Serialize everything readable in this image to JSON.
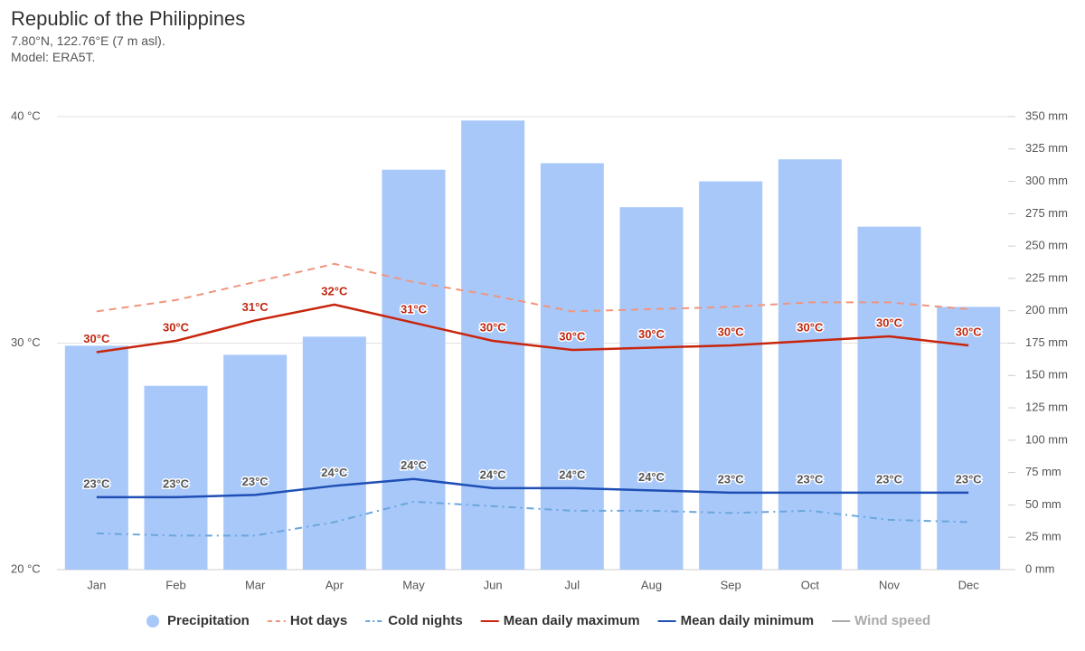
{
  "chart_data": {
    "type": "bar",
    "title": "Republic of the Philippines",
    "subtitle": [
      "7.80°N, 122.76°E (7 m asl).",
      "Model: ERA5T."
    ],
    "categories": [
      "Jan",
      "Feb",
      "Mar",
      "Apr",
      "May",
      "Jun",
      "Jul",
      "Aug",
      "Sep",
      "Oct",
      "Nov",
      "Dec"
    ],
    "ylim": [
      20,
      40
    ],
    "yticks": [
      {
        "value": 20,
        "label": "20 °C"
      },
      {
        "value": 30,
        "label": "30 °C"
      },
      {
        "value": 40,
        "label": "40 °C"
      }
    ],
    "y2lim": [
      0,
      350
    ],
    "y2ticks": [
      {
        "value": 0,
        "label": "0 mm"
      },
      {
        "value": 25,
        "label": "25 mm"
      },
      {
        "value": 50,
        "label": "50 mm"
      },
      {
        "value": 75,
        "label": "75 mm"
      },
      {
        "value": 100,
        "label": "100 mm"
      },
      {
        "value": 125,
        "label": "125 mm"
      },
      {
        "value": 150,
        "label": "150 mm"
      },
      {
        "value": 175,
        "label": "175 mm"
      },
      {
        "value": 200,
        "label": "200 mm"
      },
      {
        "value": 225,
        "label": "225 mm"
      },
      {
        "value": 250,
        "label": "250 mm"
      },
      {
        "value": 275,
        "label": "275 mm"
      },
      {
        "value": 300,
        "label": "300 mm"
      },
      {
        "value": 325,
        "label": "325 mm"
      },
      {
        "value": 350,
        "label": "350 mm"
      }
    ],
    "grid": true,
    "legend": "bottom",
    "series": [
      {
        "name": "Precipitation",
        "type": "bar",
        "axis": "y2",
        "color": "#a8c8fa",
        "values": [
          173,
          142,
          166,
          180,
          309,
          347,
          314,
          280,
          300,
          317,
          265,
          203
        ]
      },
      {
        "name": "Hot days",
        "type": "line",
        "dash": "dashed",
        "color": "#f0957e",
        "values": [
          31.4,
          31.9,
          32.7,
          33.5,
          32.7,
          32.1,
          31.4,
          31.5,
          31.6,
          31.8,
          31.8,
          31.5
        ]
      },
      {
        "name": "Cold nights",
        "type": "line",
        "dash": "dashdot",
        "color": "#6aa6dc",
        "values": [
          21.6,
          21.5,
          21.5,
          22.1,
          23.0,
          22.8,
          22.6,
          22.6,
          22.5,
          22.6,
          22.2,
          22.1
        ]
      },
      {
        "name": "Mean daily maximum",
        "type": "line",
        "color": "#c8250d",
        "label_color": "#c0270f",
        "values": [
          29.6,
          30.1,
          31.0,
          31.7,
          30.9,
          30.1,
          29.7,
          29.8,
          29.9,
          30.1,
          30.3,
          29.9
        ],
        "value_labels": [
          "30°C",
          "30°C",
          "31°C",
          "32°C",
          "31°C",
          "30°C",
          "30°C",
          "30°C",
          "30°C",
          "30°C",
          "30°C",
          "30°C"
        ]
      },
      {
        "name": "Mean daily minimum",
        "type": "line",
        "color": "#1f4fb4",
        "label_color": "#555555",
        "values": [
          23.2,
          23.2,
          23.3,
          23.7,
          24.0,
          23.6,
          23.6,
          23.5,
          23.4,
          23.4,
          23.4,
          23.4
        ],
        "value_labels": [
          "23°C",
          "23°C",
          "23°C",
          "24°C",
          "24°C",
          "24°C",
          "24°C",
          "24°C",
          "23°C",
          "23°C",
          "23°C",
          "23°C"
        ]
      },
      {
        "name": "Wind speed",
        "type": "line",
        "color": "#aaaaaa",
        "hidden": true,
        "values": [
          null,
          null,
          null,
          null,
          null,
          null,
          null,
          null,
          null,
          null,
          null,
          null
        ]
      }
    ]
  }
}
